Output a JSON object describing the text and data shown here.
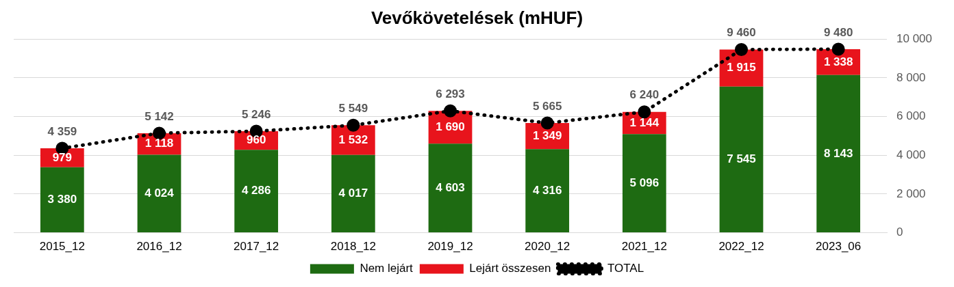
{
  "chart_data": {
    "type": "bar",
    "title": "Vevőkövetelések (mHUF)",
    "stacked": true,
    "legend": "bottom",
    "grid": "y",
    "marker": "circle",
    "line_style": "dotted",
    "categories": [
      "2015_12",
      "2016_12",
      "2017_12",
      "2018_12",
      "2019_12",
      "2020_12",
      "2021_12",
      "2022_12",
      "2023_06"
    ],
    "ylim": [
      0,
      10000
    ],
    "yticks": [
      0,
      {
        "value": 2000,
        "label": "2 000"
      },
      {
        "value": 4000,
        "label": "4 000"
      },
      {
        "value": 6000,
        "label": "6 000"
      },
      {
        "value": 8000,
        "label": "8 000"
      },
      {
        "value": 10000,
        "label": "10 000"
      }
    ],
    "series": [
      {
        "name": "Nem lejárt",
        "color": "#1e6b12",
        "values": [
          3380,
          4024,
          4286,
          4017,
          4603,
          4316,
          5096,
          7545,
          8143
        ],
        "value_labels": [
          "3 380",
          "4 024",
          "4 286",
          "4 017",
          "4 603",
          "4 316",
          "5 096",
          "7 545",
          "8 143"
        ]
      },
      {
        "name": "Lejárt összesen",
        "color": "#e8141c",
        "values": [
          979,
          1118,
          960,
          1532,
          1690,
          1349,
          1144,
          1915,
          1338
        ],
        "value_labels": [
          "979",
          "1 118",
          "960",
          "1 532",
          "1 690",
          "1 349",
          "1 144",
          "1 915",
          "1 338"
        ]
      },
      {
        "name": "TOTAL",
        "type": "line",
        "color": "#000000",
        "values": [
          4359,
          5142,
          5246,
          5549,
          6293,
          5665,
          6240,
          9460,
          9480
        ],
        "value_labels": [
          "4 359",
          "5 142",
          "5 246",
          "5 549",
          "6 293",
          "5 665",
          "6 240",
          "9 460",
          "9 480"
        ]
      }
    ]
  }
}
